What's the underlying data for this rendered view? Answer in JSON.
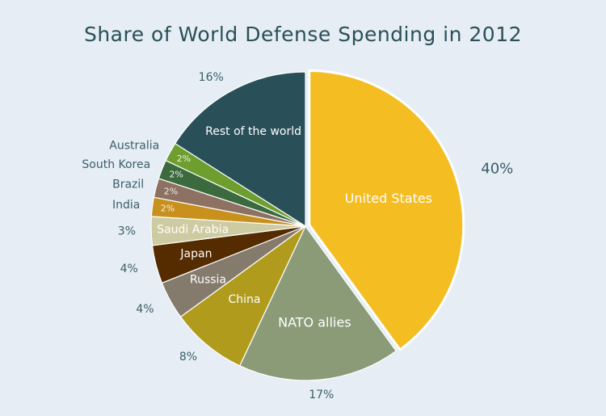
{
  "chart_data": {
    "type": "pie",
    "title": "Share of World Defense Spending in 2012",
    "unit": "%",
    "slices": [
      {
        "label": "United States",
        "value": 40,
        "display": "40%",
        "color": "#f4bd22",
        "exploded": true
      },
      {
        "label": "NATO allies",
        "value": 17,
        "display": "17%",
        "color": "#8b9b78"
      },
      {
        "label": "China",
        "value": 8,
        "display": "8%",
        "color": "#b09b1c"
      },
      {
        "label": "Russia",
        "value": 4,
        "display": "4%",
        "color": "#857b6d"
      },
      {
        "label": "Japan",
        "value": 4,
        "display": "4%",
        "color": "#552b00"
      },
      {
        "label": "Saudi Arabia",
        "value": 3,
        "display": "3%",
        "color": "#cdcba1"
      },
      {
        "label": "India",
        "value": 2,
        "display": "2%",
        "color": "#c8911e"
      },
      {
        "label": "Brazil",
        "value": 2,
        "display": "2%",
        "color": "#8d7263"
      },
      {
        "label": "South Korea",
        "value": 2,
        "display": "2%",
        "color": "#3b6a3e"
      },
      {
        "label": "Australia",
        "value": 2,
        "display": "2%",
        "color": "#6d9e2e"
      },
      {
        "label": "Rest of the world",
        "value": 16,
        "display": "16%",
        "color": "#294f58"
      }
    ]
  }
}
